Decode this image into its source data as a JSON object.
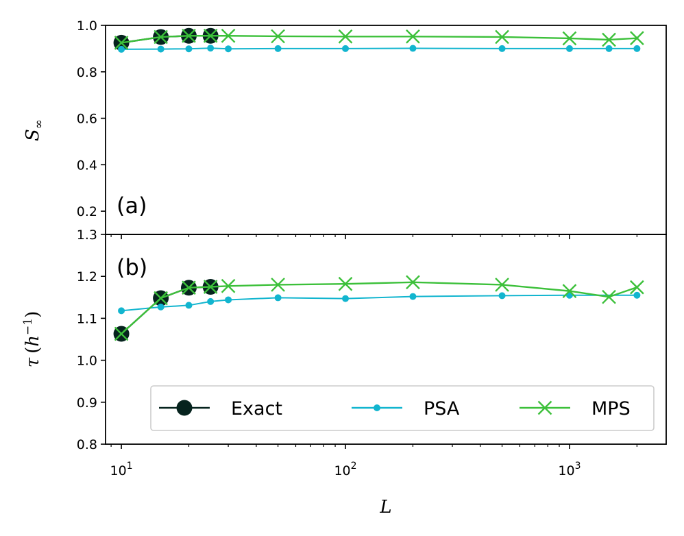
{
  "chart_data": [
    {
      "type": "line",
      "panel_label": "(a)",
      "ylabel": "S∞",
      "ylabel_main": "S",
      "ylabel_sub": "∞",
      "xscale": "log",
      "xlim": [
        8.5,
        2700
      ],
      "ylim": [
        0.1,
        1.0
      ],
      "yticks": [
        1.0,
        0.8,
        0.6,
        0.4,
        0.2
      ],
      "ytick_labels": [
        "1.0",
        "0.8",
        "0.6",
        "0.4",
        "0.2"
      ],
      "series": [
        {
          "name": "Exact",
          "color": "#06231e",
          "marker": "circle",
          "x": [
            10,
            15,
            20,
            25
          ],
          "values": [
            0.925,
            0.95,
            0.955,
            0.955
          ]
        },
        {
          "name": "PSA",
          "color": "#12b5cf",
          "marker": "dot",
          "x": [
            10,
            15,
            20,
            25,
            30,
            50,
            100,
            200,
            500,
            1000,
            1500,
            2000
          ],
          "values": [
            0.897,
            0.898,
            0.899,
            0.902,
            0.899,
            0.9,
            0.9,
            0.901,
            0.9,
            0.9,
            0.9,
            0.9
          ]
        },
        {
          "name": "MPS",
          "color": "#3cc03a",
          "marker": "x",
          "x": [
            10,
            15,
            20,
            25,
            30,
            50,
            100,
            200,
            500,
            1000,
            1500,
            2000
          ],
          "values": [
            0.925,
            0.95,
            0.955,
            0.955,
            0.955,
            0.953,
            0.952,
            0.952,
            0.95,
            0.944,
            0.938,
            0.945
          ]
        }
      ]
    },
    {
      "type": "line",
      "panel_label": "(b)",
      "ylabel": "τ (h⁻¹)",
      "ylabel_tau": "τ",
      "ylabel_open": "(",
      "ylabel_h": "h",
      "ylabel_exp": "−1",
      "ylabel_close": ")",
      "xlabel": "L",
      "xscale": "log",
      "xlim": [
        8.5,
        2700
      ],
      "ylim": [
        0.8,
        1.3
      ],
      "yticks": [
        1.3,
        1.2,
        1.1,
        1.0,
        0.9,
        0.8
      ],
      "ytick_labels": [
        "1.3",
        "1.2",
        "1.1",
        "1.0",
        "0.9",
        "0.8"
      ],
      "xticks": [
        10,
        100,
        1000
      ],
      "xtick_base": [
        "10",
        "10",
        "10"
      ],
      "xtick_exp": [
        "1",
        "2",
        "3"
      ],
      "legend_location": "lower center",
      "series": [
        {
          "name": "Exact",
          "color": "#06231e",
          "marker": "circle",
          "x": [
            10,
            15,
            20,
            25
          ],
          "values": [
            1.063,
            1.148,
            1.173,
            1.175
          ]
        },
        {
          "name": "PSA",
          "color": "#12b5cf",
          "marker": "dot",
          "x": [
            10,
            15,
            20,
            25,
            30,
            50,
            100,
            200,
            500,
            1000,
            2000
          ],
          "values": [
            1.118,
            1.127,
            1.131,
            1.14,
            1.144,
            1.149,
            1.147,
            1.152,
            1.154,
            1.155,
            1.155
          ]
        },
        {
          "name": "MPS",
          "color": "#3cc03a",
          "marker": "x",
          "x": [
            10,
            15,
            20,
            25,
            30,
            50,
            100,
            200,
            500,
            1000,
            1500,
            2000
          ],
          "values": [
            1.063,
            1.148,
            1.173,
            1.175,
            1.177,
            1.18,
            1.182,
            1.186,
            1.18,
            1.165,
            1.151,
            1.174
          ]
        }
      ]
    }
  ],
  "legend": {
    "entries": [
      {
        "label": "Exact",
        "color": "#06231e",
        "marker": "circle"
      },
      {
        "label": "PSA",
        "color": "#12b5cf",
        "marker": "dot"
      },
      {
        "label": "MPS",
        "color": "#3cc03a",
        "marker": "x"
      }
    ]
  }
}
